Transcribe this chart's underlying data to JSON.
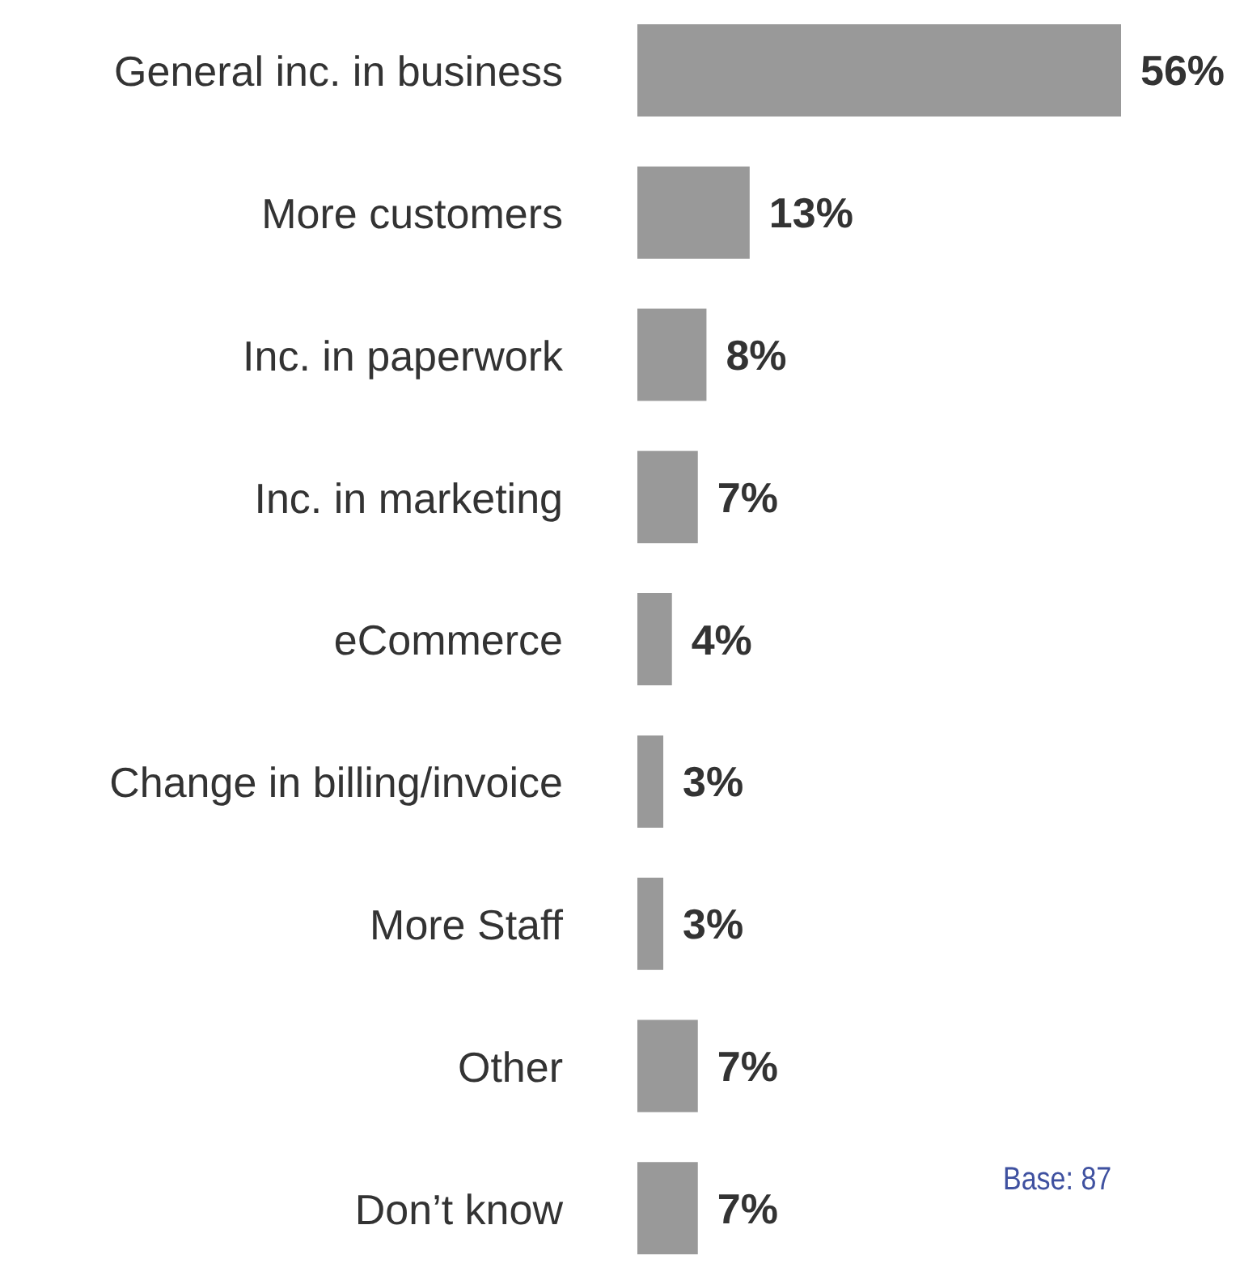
{
  "chart_data": {
    "type": "bar",
    "orientation": "horizontal",
    "categories": [
      "General inc. in business",
      "More customers",
      "Inc. in paperwork",
      "Inc. in marketing",
      "eCommerce",
      "Change in billing/invoice",
      "More Staff",
      "Other",
      "Don’t know"
    ],
    "values": [
      56,
      13,
      8,
      7,
      4,
      3,
      3,
      7,
      7
    ],
    "value_labels": [
      "56%",
      "13%",
      "8%",
      "7%",
      "4%",
      "3%",
      "3%",
      "7%",
      "7%"
    ],
    "color": "#999999",
    "annotations": [
      "Base: 87"
    ]
  }
}
